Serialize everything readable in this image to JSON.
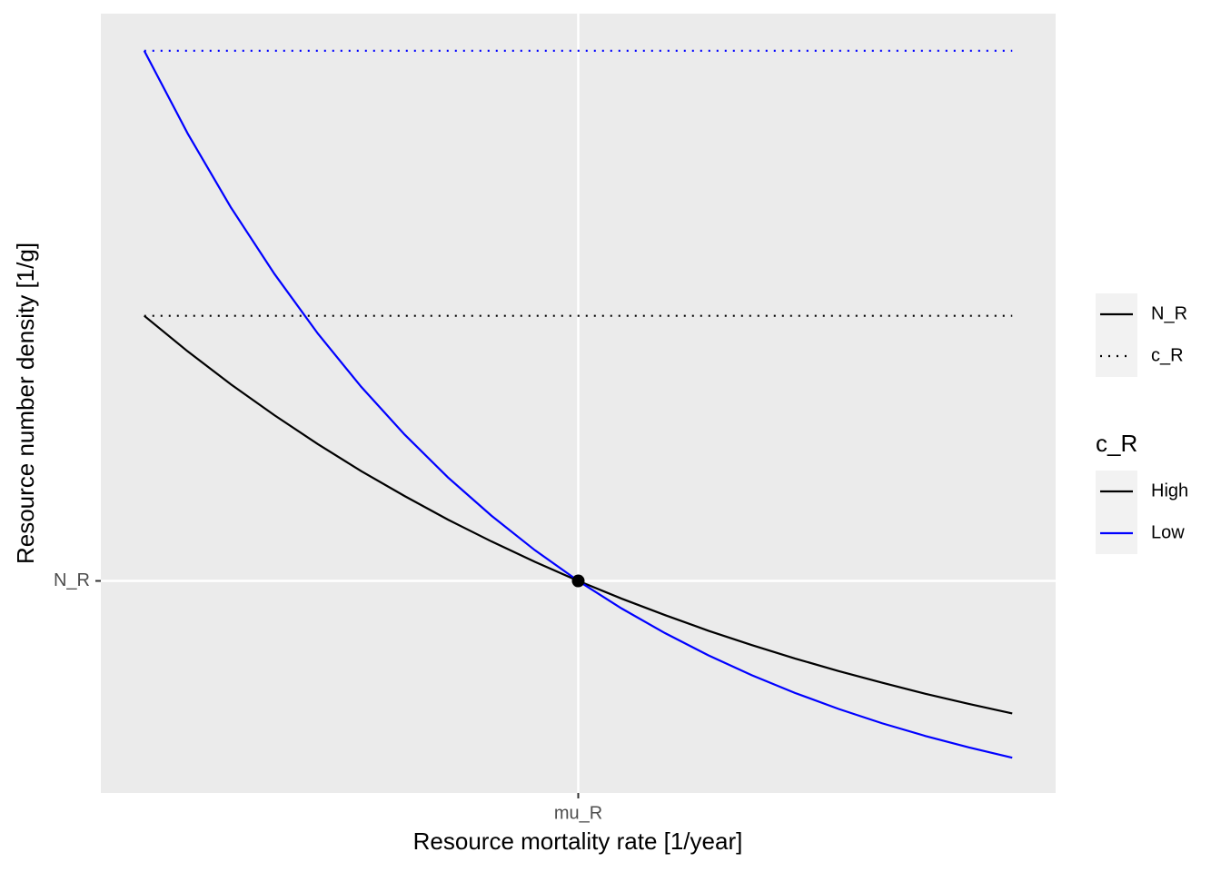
{
  "chart_data": {
    "type": "line",
    "x_label": "Resource mortality rate [1/year]",
    "y_label": "Resource number density [1/g]",
    "x": [
      0.5,
      0.55,
      0.6,
      0.65,
      0.7,
      0.75,
      0.8,
      0.85,
      0.9,
      0.95,
      1,
      1.05,
      1.1,
      1.15,
      1.2,
      1.25,
      1.3,
      1.35,
      1.4,
      1.45,
      1.5
    ],
    "series": [
      {
        "name": "High",
        "color": "#000000",
        "c_value": 2,
        "values": [
          2,
          1.866,
          1.741,
          1.625,
          1.516,
          1.414,
          1.32,
          1.231,
          1.149,
          1.072,
          1,
          0.933,
          0.871,
          0.812,
          0.758,
          0.707,
          0.66,
          0.616,
          0.574,
          0.536,
          0.5
        ]
      },
      {
        "name": "Low",
        "color": "#0000ff",
        "c_value": 3,
        "values": [
          3,
          2.688,
          2.408,
          2.158,
          1.933,
          1.732,
          1.552,
          1.39,
          1.246,
          1.116,
          1,
          0.896,
          0.803,
          0.719,
          0.644,
          0.577,
          0.517,
          0.463,
          0.415,
          0.372,
          0.333
        ]
      }
    ],
    "point": {
      "x": 1,
      "y": 1
    },
    "xlim": [
      0.45,
      1.55
    ],
    "ylim": [
      0.2,
      3.14
    ],
    "xticks": [
      {
        "value": 1,
        "label": "mu_R"
      }
    ],
    "yticks": [
      {
        "value": 1,
        "label": "N_R"
      }
    ],
    "linetype_legend": [
      "N_R",
      "c_R"
    ],
    "color_legend_title": "c_R",
    "grid": true
  }
}
